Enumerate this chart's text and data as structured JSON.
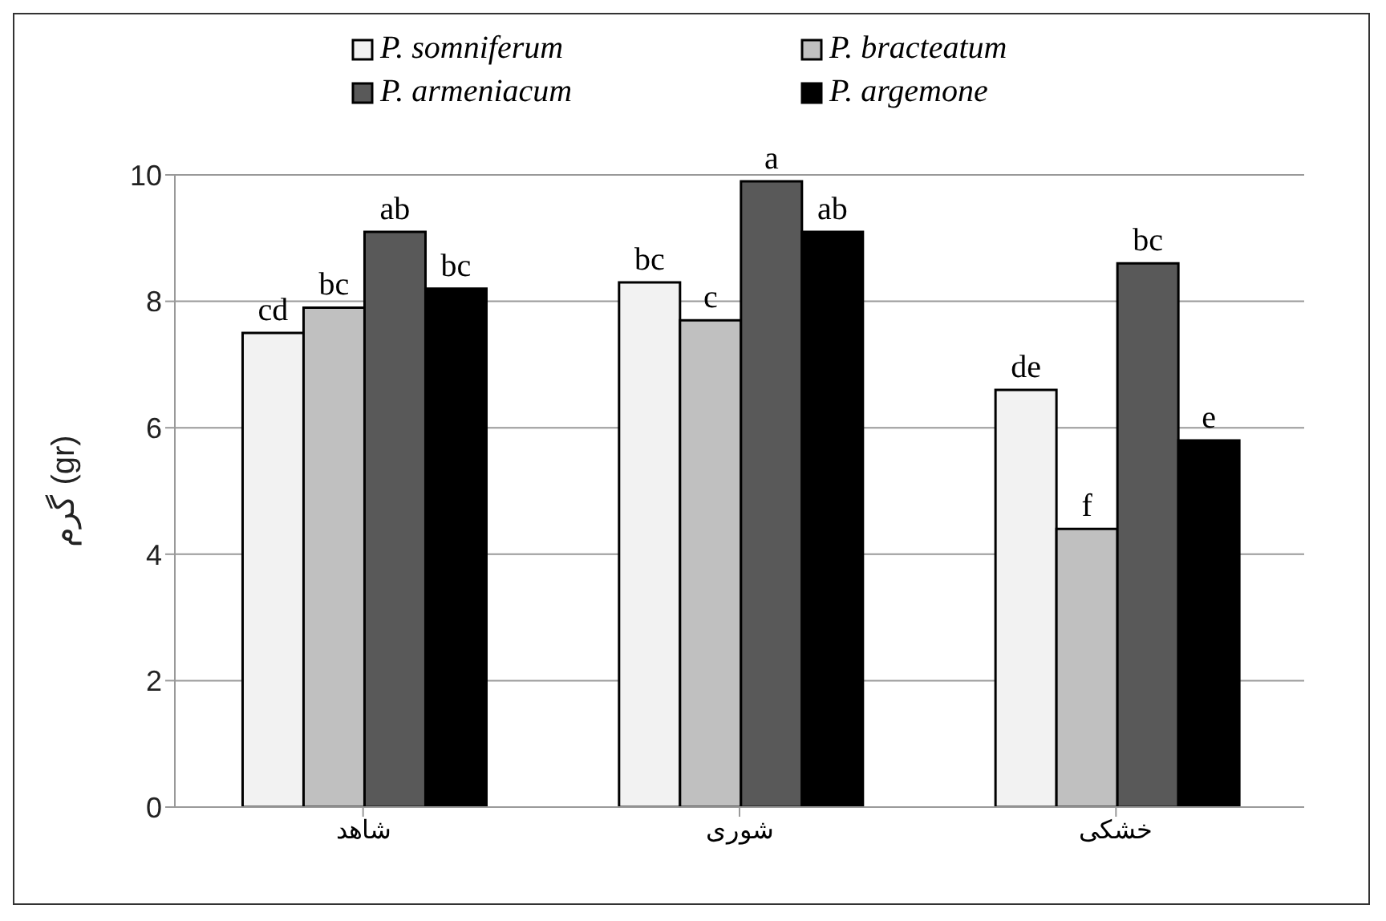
{
  "chart_data": {
    "type": "bar",
    "ylabel": "گرم (gr)",
    "categories": [
      "شاهد",
      "شوری",
      "خشکی"
    ],
    "series": [
      {
        "name": "P. somniferum",
        "color": "#f2f2f2",
        "values": [
          7.5,
          8.3,
          6.6
        ],
        "value_labels": [
          "cd",
          "bc",
          "de"
        ]
      },
      {
        "name": "P. bracteatum",
        "color": "#c0c0c0",
        "values": [
          7.9,
          7.7,
          4.4
        ],
        "value_labels": [
          "bc",
          "c",
          "f"
        ]
      },
      {
        "name": "P. armeniacum",
        "color": "#595959",
        "values": [
          9.1,
          9.9,
          8.6
        ],
        "value_labels": [
          "ab",
          "a",
          "bc"
        ]
      },
      {
        "name": "P. argemone",
        "color": "#000000",
        "values": [
          8.2,
          9.1,
          5.8
        ],
        "value_labels": [
          "bc",
          "ab",
          "e"
        ]
      }
    ],
    "ylim": [
      0,
      10
    ],
    "yticks": [
      0,
      2,
      4,
      6,
      8,
      10
    ],
    "grid": "y",
    "legend": "top"
  }
}
